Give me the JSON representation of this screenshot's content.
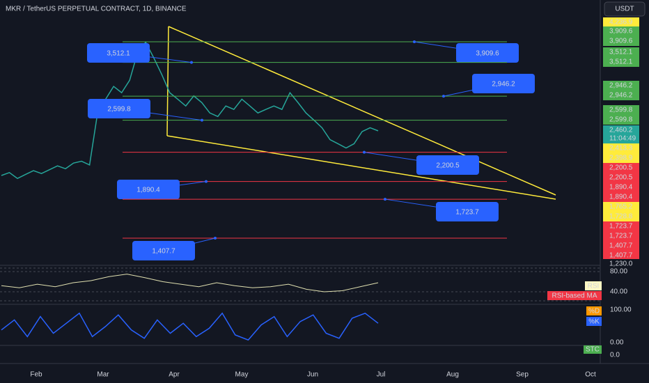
{
  "header": {
    "title": "MKR / TetherUS PERPETUAL CONTRACT, 1D, BINANCE",
    "currency": "USDT"
  },
  "price": {
    "log_scale": true,
    "closes": [
      1950,
      1980,
      1920,
      1960,
      2000,
      1970,
      2010,
      2050,
      2020,
      2080,
      2100,
      2060,
      2700,
      2900,
      3100,
      3000,
      3200,
      3700,
      3900,
      3600,
      3300,
      3000,
      2900,
      2800,
      2950,
      2850,
      2700,
      2650,
      2800,
      2750,
      2900,
      2800,
      2700,
      2750,
      2800,
      2750,
      3000,
      2850,
      2700,
      2600,
      2500,
      2350,
      2300,
      2250,
      2300,
      2450,
      2500,
      2460
    ],
    "levels": [
      {
        "value": 3909.6,
        "label": "3,909.6",
        "color": "#4caf50"
      },
      {
        "value": 3512.1,
        "label": "3,512.1",
        "color": "#4caf50"
      },
      {
        "value": 2946.2,
        "label": "2,946.2",
        "color": "#4caf50"
      },
      {
        "value": 2599.8,
        "label": "2,599.8",
        "color": "#4caf50"
      },
      {
        "value": 2200.5,
        "label": "2,200.5",
        "color": "#f23645"
      },
      {
        "value": 1890.4,
        "label": "1,890.4",
        "color": "#f23645"
      },
      {
        "value": 1723.7,
        "label": "1,723.7",
        "color": "#f23645"
      },
      {
        "value": 1407.7,
        "label": "1,407.7",
        "color": "#f23645"
      }
    ],
    "axis_labels": [
      {
        "text": "4,236.9",
        "color": "#ffeb3b"
      },
      {
        "text": "3,909.6",
        "color": "#4caf50"
      },
      {
        "text": "3,909.6",
        "color": "#4caf50"
      },
      {
        "text": "3,512.1",
        "color": "#4caf50"
      },
      {
        "text": "3,512.1",
        "color": "#4caf50"
      },
      {
        "text": "2,946.2",
        "color": "#4caf50"
      },
      {
        "text": "2,946.2",
        "color": "#4caf50"
      },
      {
        "text": "2,599.8",
        "color": "#4caf50"
      },
      {
        "text": "2,599.8",
        "color": "#4caf50"
      },
      {
        "text": "2,460.2",
        "color": "#26a69a"
      },
      {
        "text": "11:04:49",
        "color": "#26a69a"
      },
      {
        "text": "2,413.3",
        "color": "#ffeb3b"
      },
      {
        "text": "2,398.9",
        "color": "#ffeb3b"
      },
      {
        "text": "2,200.5",
        "color": "#f23645"
      },
      {
        "text": "2,200.5",
        "color": "#f23645"
      },
      {
        "text": "1,890.4",
        "color": "#f23645"
      },
      {
        "text": "1,890.4",
        "color": "#f23645"
      },
      {
        "text": "1,765.2",
        "color": "#ffeb3b"
      },
      {
        "text": "1,728.8",
        "color": "#ffeb3b"
      },
      {
        "text": "1,723.7",
        "color": "#f23645"
      },
      {
        "text": "1,723.7",
        "color": "#f23645"
      },
      {
        "text": "1,407.7",
        "color": "#f23645"
      },
      {
        "text": "1,407.7",
        "color": "#f23645"
      },
      {
        "text": "1,230.0",
        "color": "#131722"
      }
    ]
  },
  "rsi": {
    "name": "RSI",
    "ma_name": "RSI-based MA",
    "ticks": [
      "80.00",
      "40.00"
    ],
    "values": [
      52,
      48,
      55,
      50,
      58,
      62,
      70,
      75,
      68,
      60,
      55,
      50,
      58,
      52,
      48,
      50,
      55,
      45,
      40,
      42,
      50,
      58
    ]
  },
  "stoch": {
    "d_name": "%D",
    "k_name": "%K",
    "ticks": [
      "100.00",
      "0.00"
    ],
    "values": [
      40,
      70,
      20,
      80,
      30,
      60,
      90,
      20,
      50,
      85,
      40,
      15,
      70,
      30,
      60,
      20,
      45,
      90,
      25,
      10,
      55,
      80,
      20,
      65,
      85,
      30,
      15,
      75,
      90,
      60
    ]
  },
  "stc": {
    "name": "STC",
    "tick": "0.0"
  },
  "time_axis": [
    "Feb",
    "Mar",
    "Apr",
    "May",
    "Jun",
    "Jul",
    "Aug",
    "Sep",
    "Oct"
  ]
}
